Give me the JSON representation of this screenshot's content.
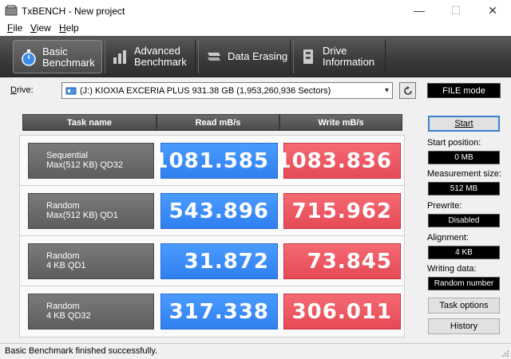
{
  "window": {
    "title": "TxBENCH - New project",
    "minimize": "—",
    "maximize": "☐",
    "close": "✕"
  },
  "menu": {
    "items": [
      {
        "label": "File",
        "mnemonic": "F",
        "rest": "ile"
      },
      {
        "label": "View",
        "mnemonic": "V",
        "rest": "iew"
      },
      {
        "label": "Help",
        "mnemonic": "H",
        "rest": "elp"
      }
    ]
  },
  "toolbar": {
    "tabs": [
      {
        "label": "Basic\nBenchmark",
        "icon": "stopwatch-icon",
        "active": true
      },
      {
        "label": "Advanced\nBenchmark",
        "icon": "bar-chart-icon",
        "active": false
      },
      {
        "label": "Data Erasing",
        "icon": "eraser-icon",
        "active": false
      },
      {
        "label": "Drive\nInformation",
        "icon": "drive-info-icon",
        "active": false
      }
    ]
  },
  "drive": {
    "label_mnemonic": "D",
    "label_rest": "rive:",
    "selected": "(J:) KIOXIA EXCERIA PLUS  931.38 GB (1,953,260,936 Sectors)",
    "mode": "FILE mode"
  },
  "table": {
    "headers": [
      "Task name",
      "Read mB/s",
      "Write mB/s"
    ],
    "rows": [
      {
        "task": "Sequential\nMax(512 KB) QD32",
        "read": "1081.585",
        "write": "1083.836"
      },
      {
        "task": "Random\nMax(512 KB) QD1",
        "read": "543.896",
        "write": "715.962"
      },
      {
        "task": "Random\n4 KB QD1",
        "read": "31.872",
        "write": "73.845"
      },
      {
        "task": "Random\n4 KB QD32",
        "read": "317.338",
        "write": "306.011"
      }
    ]
  },
  "side": {
    "start_button": "Start",
    "start_position_label": "Start position:",
    "start_position_value": "0 MB",
    "measurement_size_label": "Measurement size:",
    "measurement_size_value": "512 MB",
    "prewrite_label": "Prewrite:",
    "prewrite_value": "Disabled",
    "alignment_label": "Alignment:",
    "alignment_value": "4 KB",
    "writing_data_label": "Writing data:",
    "writing_data_value": "Random number",
    "task_options_button": "Task options",
    "history_button": "History"
  },
  "status": {
    "text": "Basic Benchmark finished successfully."
  },
  "colors": {
    "read": "#3b8cf8",
    "write": "#ea5560",
    "toolbar": "#3a3a3a"
  }
}
